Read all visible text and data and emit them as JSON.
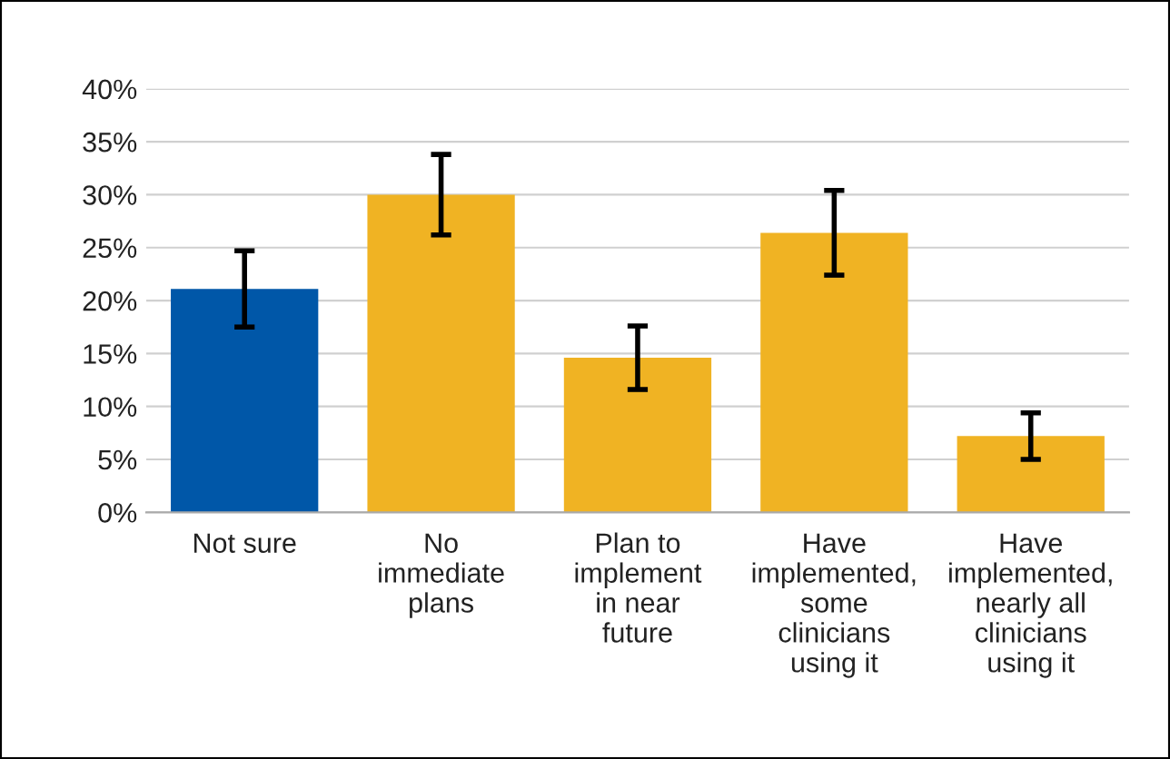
{
  "chart_data": {
    "type": "bar",
    "categories": [
      "Not sure",
      "No\nimmediate\nplans",
      "Plan to\nimplement\nin near\nfuture",
      "Have\nimplemented,\nsome\nclinicians\nusing it",
      "Have\nimplemented,\nnearly all\nclinicians\nusing it"
    ],
    "values": [
      21.1,
      30.0,
      14.6,
      26.4,
      7.2
    ],
    "errors": [
      3.6,
      3.8,
      3.0,
      4.0,
      2.2
    ],
    "colors": [
      "#0057a8",
      "#f0b323",
      "#f0b323",
      "#f0b323",
      "#f0b323"
    ],
    "ylim": [
      0,
      40
    ],
    "yticks": [
      {
        "value": 0,
        "label": "0%"
      },
      {
        "value": 5,
        "label": "5%"
      },
      {
        "value": 10,
        "label": "10%"
      },
      {
        "value": 15,
        "label": "15%"
      },
      {
        "value": 20,
        "label": "20%"
      },
      {
        "value": 25,
        "label": "25%"
      },
      {
        "value": 30,
        "label": "30%"
      },
      {
        "value": 35,
        "label": "35%"
      },
      {
        "value": 40,
        "label": "40%"
      }
    ],
    "grid": "y"
  }
}
